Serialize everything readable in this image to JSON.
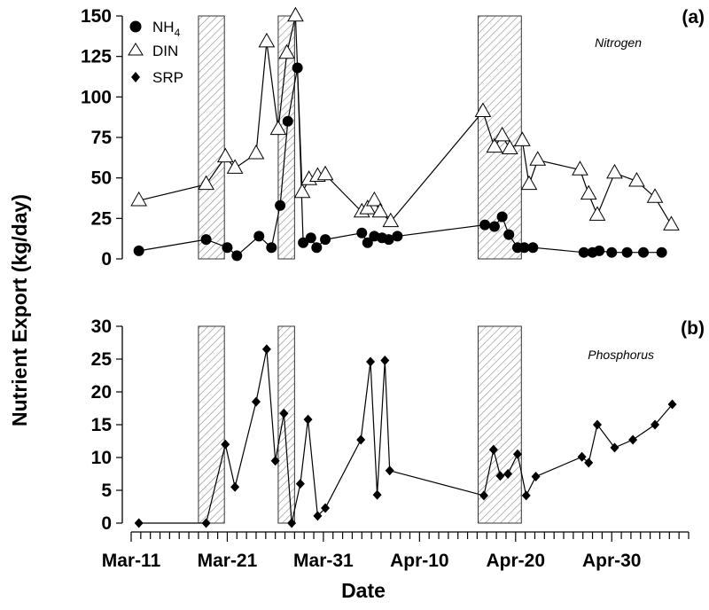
{
  "figure": {
    "ylabel": "Nutrient Export (kg/day)",
    "xlabel": "Date",
    "x_tick_labels": [
      "Mar-11",
      "Mar-21",
      "Mar-31",
      "Apr-10",
      "Apr-20",
      "Apr-30"
    ],
    "panels": [
      {
        "tag": "(a)",
        "subtitle": "Nitrogen"
      },
      {
        "tag": "(b)",
        "subtitle": "Phosphorus"
      }
    ],
    "legend": [
      {
        "label": "NH",
        "subscript": "4",
        "marker": "filled-circle"
      },
      {
        "label": "DIN",
        "subscript": "",
        "marker": "open-triangle"
      },
      {
        "label": "SRP",
        "subscript": "",
        "marker": "filled-diamond"
      }
    ]
  },
  "chart_data": [
    {
      "type": "line",
      "panel": "(a)",
      "title": "Nitrogen",
      "xlabel": "Date",
      "ylabel": "Nutrient Export (kg/day)",
      "x_unit": "days since Mar-11",
      "xlim": [
        0,
        58
      ],
      "ylim": [
        0,
        150
      ],
      "y_ticks": [
        0,
        25,
        50,
        75,
        100,
        125,
        150
      ],
      "x_ticks": [
        0,
        10,
        20,
        30,
        40,
        50
      ],
      "x_tick_labels": [
        "Mar-11",
        "Mar-21",
        "Mar-31",
        "Apr-10",
        "Apr-20",
        "Apr-30"
      ],
      "shaded_periods": [
        [
          7.0,
          9.7
        ],
        [
          15.3,
          17.0
        ],
        [
          36.1,
          40.6
        ]
      ],
      "series": [
        {
          "name": "NH4",
          "marker": "filled-circle",
          "x": [
            0.8,
            7.8,
            10.0,
            11.0,
            13.3,
            14.6,
            15.5,
            16.3,
            17.3,
            17.9,
            18.7,
            19.3,
            20.2,
            24.0,
            24.6,
            25.3,
            26.1,
            26.8,
            27.7,
            36.8,
            37.8,
            38.6,
            39.3,
            40.2,
            40.9,
            41.8,
            47.1,
            48.0,
            48.7,
            50.0,
            51.6,
            53.3,
            55.2
          ],
          "y": [
            5,
            12,
            7,
            2,
            14,
            7,
            33,
            85,
            118,
            10,
            13,
            7,
            12,
            16,
            10,
            14,
            13,
            12,
            14,
            21,
            20,
            26,
            15,
            7,
            7,
            7,
            4,
            4,
            5,
            4,
            4,
            4,
            4
          ]
        },
        {
          "name": "DIN",
          "marker": "open-triangle",
          "x": [
            0.8,
            7.8,
            9.8,
            10.8,
            13.0,
            14.1,
            15.3,
            16.2,
            17.1,
            17.8,
            18.5,
            19.4,
            20.2,
            24.0,
            24.6,
            25.3,
            25.9,
            27.0,
            36.6,
            37.8,
            38.6,
            39.4,
            40.7,
            41.4,
            42.3,
            46.7,
            47.6,
            48.5,
            50.3,
            52.6,
            54.5,
            56.2
          ],
          "y": [
            36,
            46,
            63,
            56,
            65,
            134,
            80,
            127,
            150,
            41,
            49,
            51,
            52,
            29,
            31,
            36,
            29,
            23,
            91,
            69,
            76,
            68,
            73,
            46,
            61,
            55,
            40,
            27,
            53,
            48,
            38,
            21
          ]
        }
      ]
    },
    {
      "type": "line",
      "panel": "(b)",
      "title": "Phosphorus",
      "xlabel": "Date",
      "ylabel": "Nutrient Export (kg/day)",
      "x_unit": "days since Mar-11",
      "xlim": [
        0,
        58
      ],
      "ylim": [
        0,
        30
      ],
      "y_ticks": [
        0,
        5,
        10,
        15,
        20,
        25,
        30
      ],
      "x_ticks": [
        0,
        10,
        20,
        30,
        40,
        50
      ],
      "x_tick_labels": [
        "Mar-11",
        "Mar-21",
        "Mar-31",
        "Apr-10",
        "Apr-20",
        "Apr-30"
      ],
      "shaded_periods": [
        [
          7.0,
          9.7
        ],
        [
          15.3,
          17.0
        ],
        [
          36.1,
          40.6
        ]
      ],
      "series": [
        {
          "name": "SRP",
          "marker": "filled-diamond",
          "x": [
            0.8,
            7.8,
            9.8,
            10.8,
            13.0,
            14.1,
            15.0,
            15.9,
            16.7,
            17.6,
            18.4,
            19.4,
            20.2,
            23.9,
            24.9,
            25.6,
            26.4,
            26.9,
            36.7,
            37.7,
            38.4,
            39.2,
            40.2,
            41.1,
            42.1,
            46.9,
            47.6,
            48.5,
            50.3,
            52.2,
            54.5,
            56.3
          ],
          "y": [
            0,
            0,
            12,
            5.5,
            18.5,
            26.5,
            9.5,
            16.7,
            0,
            6,
            15.8,
            1.1,
            2.3,
            12.7,
            24.6,
            4.3,
            24.8,
            8,
            4.2,
            11.2,
            7.2,
            7.5,
            10.5,
            4.2,
            7.1,
            10.1,
            9.2,
            15,
            11.5,
            12.7,
            15,
            18.1
          ]
        }
      ]
    }
  ]
}
